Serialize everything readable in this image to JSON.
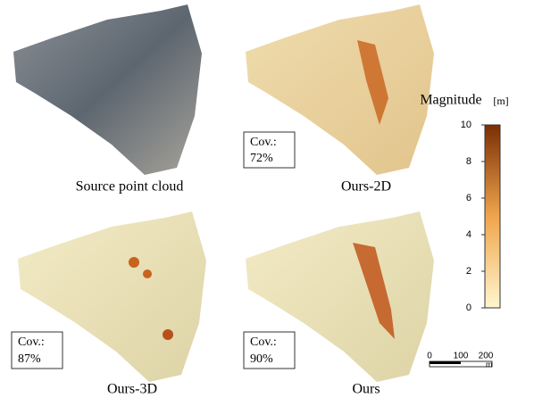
{
  "panels": [
    {
      "caption": "Source point cloud"
    },
    {
      "caption": "Ours-2D",
      "coverage_label": "Cov.:",
      "coverage": "72%"
    },
    {
      "caption": "Ours-3D",
      "coverage_label": "Cov.:",
      "coverage": "87%"
    },
    {
      "caption": "Ours",
      "coverage_label": "Cov.:",
      "coverage": "90%"
    }
  ],
  "colorbar": {
    "title": "Magnitude",
    "unit": "[m]",
    "lim": [
      0,
      10
    ],
    "ticks": [
      0,
      2,
      4,
      6,
      8,
      10
    ]
  },
  "scale_bar": {
    "ticks": [
      "0",
      "100",
      "200"
    ],
    "unit": "m"
  }
}
